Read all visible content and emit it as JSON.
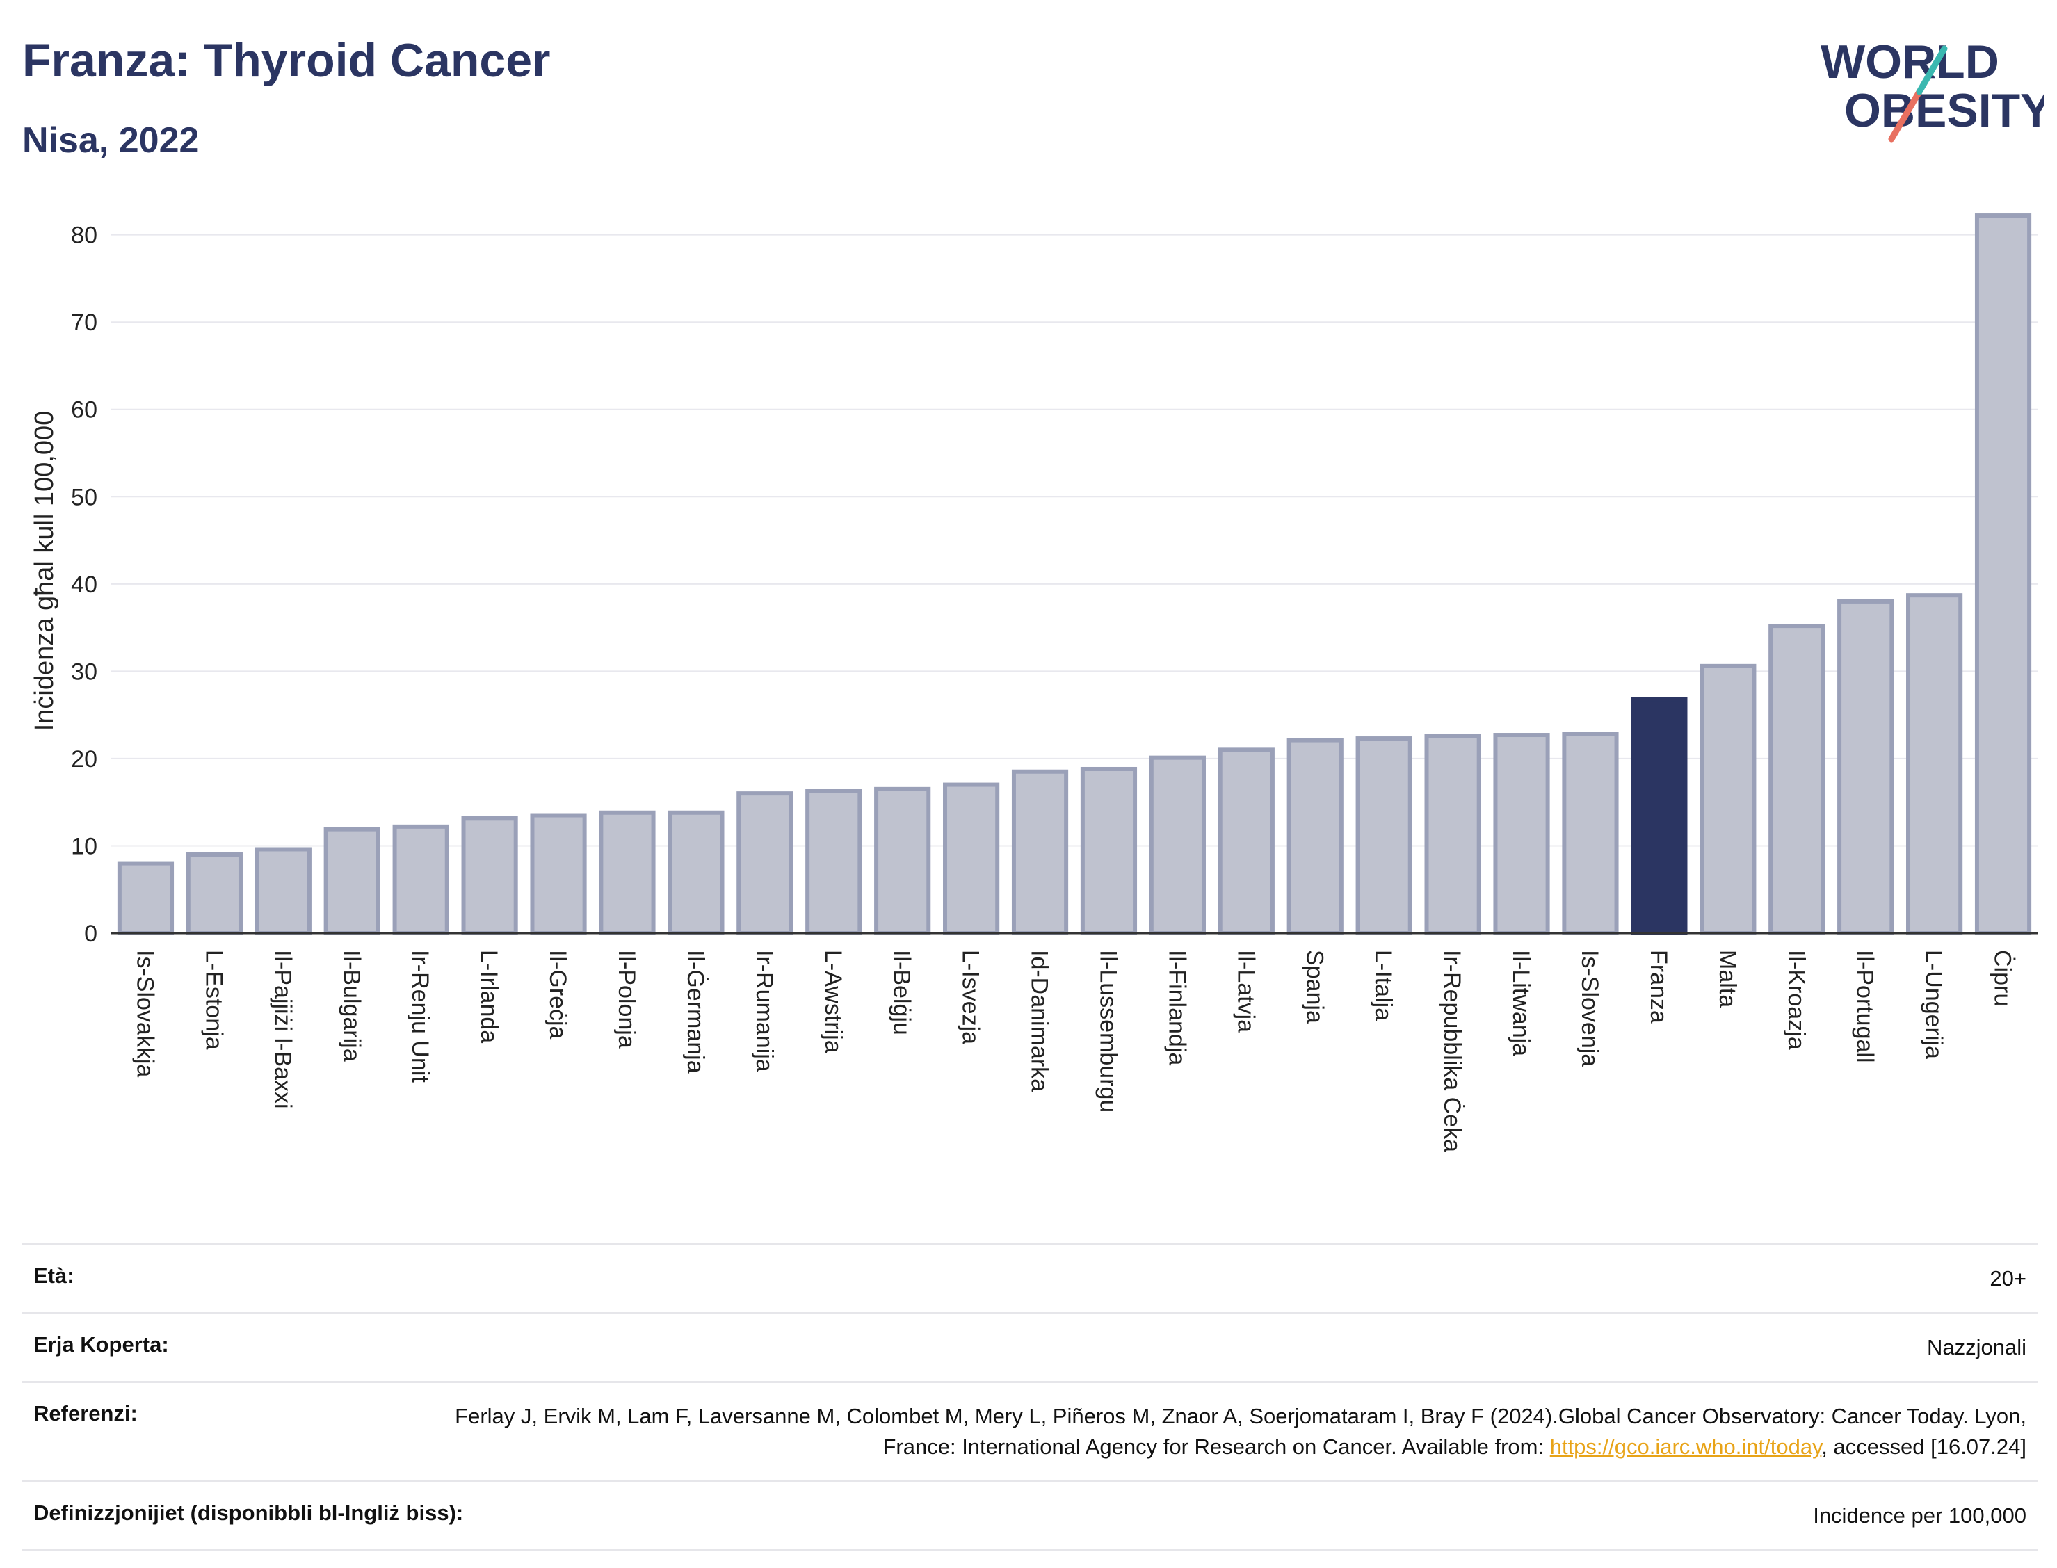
{
  "header": {
    "title": "Franza: Thyroid Cancer",
    "subtitle": "Nisa, 2022"
  },
  "logo": {
    "line1": "WORLD",
    "line2": "OBESITY"
  },
  "colors": {
    "default_bar": "#bfc2cf",
    "default_bar_edge": "#9aa0b8",
    "highlight_bar": "#2b3562",
    "title": "#2b3562"
  },
  "chart_data": {
    "type": "bar",
    "title": "Franza: Thyroid Cancer",
    "subtitle": "Nisa, 2022",
    "xlabel": "",
    "ylabel": "Inċidenza għal kull 100,000",
    "ylim": [
      0,
      83
    ],
    "yticks": [
      0,
      10,
      20,
      30,
      40,
      50,
      60,
      70,
      80
    ],
    "grid": true,
    "highlight": "Franza",
    "categories": [
      "Is-Slovakkja",
      "L-Estonja",
      "Il-Pajjiżi l-Baxxi",
      "Il-Bulgarija",
      "Ir-Renju Unit",
      "L-Irlanda",
      "Il-Greċja",
      "Il-Polonja",
      "Il-Ġermanja",
      "Ir-Rumanija",
      "L-Awstrija",
      "Il-Belġju",
      "L-Isvezja",
      "Id-Danimarka",
      "Il-Lussemburgu",
      "Il-Finlandja",
      "Il-Latvja",
      "Spanja",
      "L-Italja",
      "Ir-Repubblika Ċeka",
      "Il-Litwanja",
      "Is-Slovenja",
      "Franza",
      "Malta",
      "Il-Kroazja",
      "Il-Portugall",
      "L-Ungerija",
      "Ċipru"
    ],
    "values": [
      8.0,
      9.0,
      9.6,
      11.9,
      12.2,
      13.2,
      13.5,
      13.8,
      13.8,
      16.0,
      16.3,
      16.5,
      17.0,
      18.5,
      18.8,
      20.1,
      21.0,
      22.1,
      22.3,
      22.6,
      22.7,
      22.8,
      26.8,
      30.6,
      35.2,
      38.0,
      38.7,
      82.2
    ]
  },
  "meta": {
    "age_label": "Età:",
    "age_value": "20+",
    "area_label": "Erja Koperta:",
    "area_value": "Nazzjonali",
    "ref_label": "Referenzi:",
    "ref_text1": "Ferlay J, Ervik M, Lam F, Laversanne M, Colombet M, Mery L, Piñeros M, Znaor A, Soerjomataram I, Bray F (2024).Global Cancer Observatory: Cancer Today. Lyon, France: International Agency for Research on Cancer. Available from: ",
    "ref_link": "https://gco.iarc.who.int/today",
    "ref_text2": ", accessed [16.07.24]",
    "def_label": "Definizzjonijiet (disponibbli bl-Ingliż biss):",
    "def_value": "Incidence per 100,000"
  }
}
